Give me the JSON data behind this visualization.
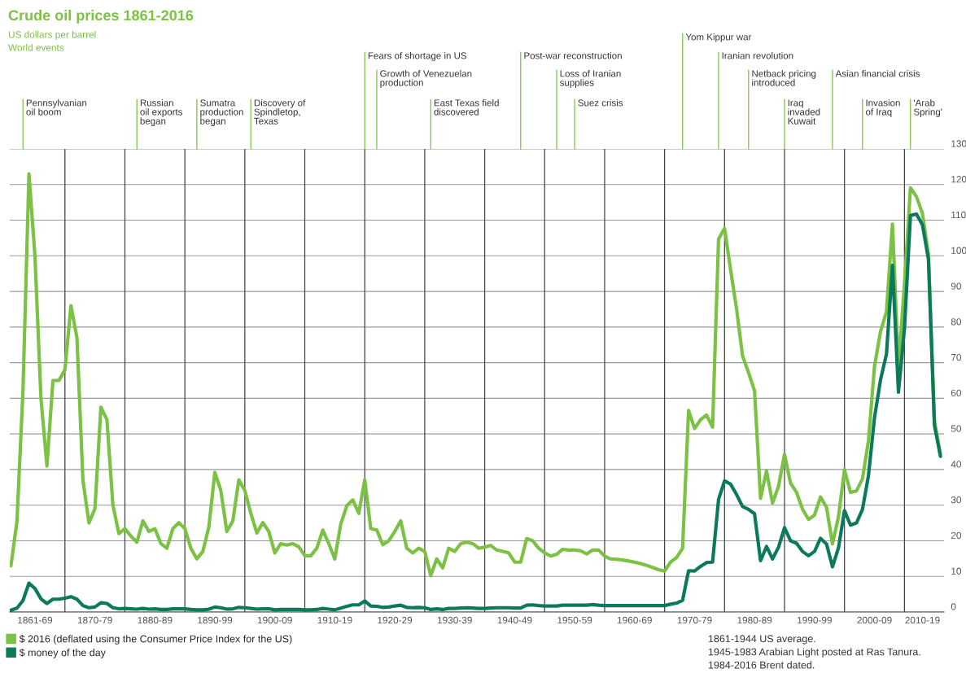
{
  "chart_data": {
    "type": "line",
    "title": "Crude oil prices 1861-2016",
    "subtitle": "US dollars per barrel",
    "annotations": [
      "World events",
      "1861-1944 US average.\n1945-1983 Arabian Light posted at Ras Tanura.\n1984-2016 Brent dated.",
      "Pennsylvanian\noil boom",
      "Russian\noil exports\nbegan",
      "Sumatra\nproduction\nbegan",
      "Discovery of\nSpindletop,\nTexas",
      "Fears of shortage in US",
      "Growth of Venezuelan\nproduction",
      "East Texas field\ndiscovered",
      "Post-war reconstruction",
      "Loss of Iranian\nsupplies",
      "Suez crisis",
      "Yom Kippur war",
      "Iranian revolution",
      "Netback pricing\nintroduced",
      "Iraq\ninvaded\nKuwait",
      "Asian financial crisis",
      "Invasion\nof Iraq",
      "'Arab\nSpring'"
    ],
    "categories": [
      null,
      null,
      null,
      null,
      "1861-69",
      null,
      null,
      null,
      null,
      null,
      null,
      null,
      null,
      null,
      "1870-79",
      null,
      null,
      null,
      null,
      null,
      null,
      null,
      null,
      null,
      "1880-89",
      null,
      null,
      null,
      null,
      null,
      null,
      null,
      null,
      null,
      "1890-99",
      null,
      null,
      null,
      null,
      null,
      null,
      null,
      null,
      null,
      "1900-09",
      null,
      null,
      null,
      null,
      null,
      null,
      null,
      null,
      null,
      "1910-19",
      null,
      null,
      null,
      null,
      null,
      null,
      null,
      null,
      null,
      "1920-29",
      null,
      null,
      null,
      null,
      null,
      null,
      null,
      null,
      null,
      "1930-39",
      null,
      null,
      null,
      null,
      null,
      null,
      null,
      null,
      null,
      "1940-49",
      null,
      null,
      null,
      null,
      null,
      null,
      null,
      null,
      null,
      "1950-59",
      null,
      null,
      null,
      null,
      null,
      null,
      null,
      null,
      null,
      "1960-69",
      null,
      null,
      null,
      null,
      null,
      null,
      null,
      null,
      null,
      "1970-79",
      null,
      null,
      null,
      null,
      null,
      null,
      null,
      null,
      null,
      "1980-89",
      null,
      null,
      null,
      null,
      null,
      null,
      null,
      null,
      null,
      "1990-99",
      null,
      null,
      null,
      null,
      null,
      null,
      null,
      null,
      null,
      "2000-09",
      null,
      null,
      null,
      null,
      null,
      null,
      null,
      "2010-19",
      null,
      null,
      null
    ],
    "series": [
      {
        "name": "$ 2016 (deflated using the Consumer Price Index for the US)",
        "color": "#7bc143",
        "values": [
          13,
          25.5,
          62,
          123,
          100,
          60,
          41,
          65,
          65,
          68,
          86,
          77,
          37,
          25,
          29,
          57.5,
          54,
          30,
          22,
          23.4,
          21.3,
          19.6,
          25.6,
          22.6,
          23.4,
          19.2,
          17.9,
          23.4,
          25.1,
          23.4,
          17.9,
          14.9,
          17,
          23.9,
          39.2,
          34.1,
          22.6,
          25.6,
          37.1,
          34.1,
          27.7,
          22.2,
          25.1,
          22.6,
          16.6,
          19.2,
          18.8,
          19.2,
          18.3,
          15.8,
          15.8,
          17.9,
          23,
          19.2,
          14.9,
          24.7,
          29.8,
          31.5,
          27.7,
          37.1,
          23.4,
          23,
          18.9,
          20,
          22.6,
          25.6,
          17.9,
          16.6,
          17.9,
          17,
          10.2,
          14.9,
          12.4,
          17.9,
          17,
          19.2,
          19.6,
          19.2,
          17.9,
          18.2,
          18.7,
          17.4,
          17,
          16.6,
          14,
          14,
          20.6,
          20,
          17.9,
          16.6,
          15.7,
          16.2,
          17.6,
          17.4,
          17.4,
          17.2,
          16.3,
          17.4,
          17.4,
          15.7,
          14.9,
          14.8,
          14.6,
          14.3,
          14,
          13.6,
          13.1,
          12.5,
          11.9,
          11.5,
          14,
          15.3,
          17.9,
          56.6,
          51.5,
          54,
          55.3,
          51.9,
          104.7,
          107.7,
          96.2,
          85.1,
          71.9,
          67.2,
          62.1,
          31.9,
          39.6,
          30.6,
          35.3,
          44.3,
          36.2,
          33.6,
          28.9,
          26,
          27.2,
          32.3,
          29.4,
          19.1,
          26.8,
          40,
          33.6,
          34,
          37.4,
          48.1,
          68.9,
          78.7,
          84.3,
          108.9,
          68.9,
          91.9,
          119.1,
          116.6,
          111.9,
          100.4,
          53.6,
          44.3
        ]
      },
      {
        "name": "$ money of the day",
        "color": "#0b7a5c",
        "values": [
          0.5,
          1.1,
          3.2,
          8.1,
          6.6,
          3.7,
          2.4,
          3.6,
          3.6,
          3.9,
          4.3,
          3.6,
          1.8,
          1.2,
          1.4,
          2.6,
          2.4,
          1.2,
          0.9,
          1,
          0.9,
          0.8,
          1,
          0.8,
          0.9,
          0.7,
          0.7,
          0.9,
          0.9,
          0.9,
          0.7,
          0.6,
          0.6,
          0.8,
          1.4,
          1.2,
          0.8,
          0.9,
          1.3,
          1.2,
          1,
          0.8,
          0.9,
          0.9,
          0.6,
          0.7,
          0.7,
          0.7,
          0.7,
          0.6,
          0.6,
          0.7,
          1,
          0.8,
          0.6,
          1.1,
          1.6,
          2,
          2,
          3.1,
          1.7,
          1.6,
          1.3,
          1.4,
          1.7,
          1.9,
          1.3,
          1.2,
          1.3,
          1.2,
          0.7,
          0.9,
          0.7,
          1,
          1,
          1.1,
          1.2,
          1.1,
          1,
          1,
          1.1,
          1.2,
          1.2,
          1.2,
          1.1,
          1.1,
          1.9,
          2,
          1.8,
          1.7,
          1.7,
          1.7,
          1.9,
          1.9,
          1.9,
          1.9,
          1.9,
          2.1,
          1.9,
          1.8,
          1.8,
          1.8,
          1.8,
          1.8,
          1.8,
          1.8,
          1.8,
          1.8,
          1.8,
          1.8,
          2.2,
          2.5,
          3.3,
          11.6,
          11.5,
          12.8,
          13.9,
          14,
          31.6,
          36.8,
          35.9,
          33,
          29.6,
          28.8,
          27.6,
          14.4,
          18.4,
          14.9,
          18.2,
          23.7,
          20,
          19.3,
          17,
          15.8,
          17,
          20.7,
          19.1,
          12.7,
          18,
          28.5,
          24.4,
          25,
          28.8,
          38.3,
          54.5,
          65.1,
          72.4,
          97.3,
          61.7,
          79.5,
          111.3,
          111.7,
          108.7,
          99,
          52.4,
          43.7
        ]
      }
    ],
    "ylim": [
      0,
      130
    ],
    "yticks": [
      0,
      10,
      20,
      30,
      40,
      50,
      60,
      70,
      80,
      90,
      100,
      110,
      120,
      130
    ],
    "grid": true,
    "legend": "bottom left",
    "marker": "none",
    "line_style": "solid"
  }
}
